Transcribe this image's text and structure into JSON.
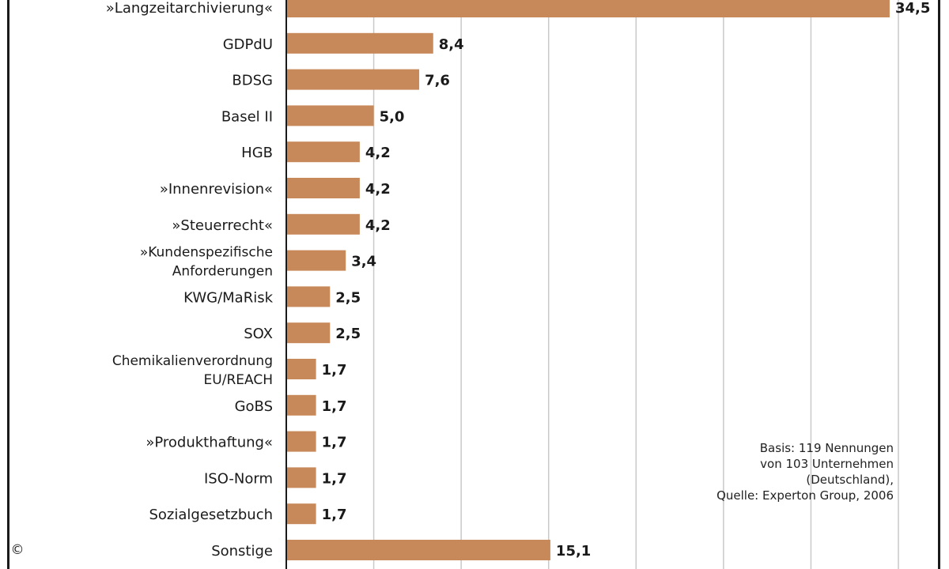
{
  "chart_data": {
    "type": "bar",
    "orientation": "horizontal",
    "categories": [
      "»Langzeitarchivierung«",
      "GDPdU",
      "BDSG",
      "Basel II",
      "HGB",
      "»Innenrevision«",
      "»Steuerrecht«",
      "»Kundenspezifische Anforderungen",
      "KWG/MaRisk",
      "SOX",
      "Chemikalienverordnung EU/REACH",
      "GoBS",
      "»Produkthaftung«",
      "ISO-Norm",
      "Sozialgesetzbuch",
      "Sonstige"
    ],
    "values": [
      34.5,
      8.4,
      7.6,
      5.0,
      4.2,
      4.2,
      4.2,
      3.4,
      2.5,
      2.5,
      1.7,
      1.7,
      1.7,
      1.7,
      1.7,
      15.1
    ],
    "value_labels": [
      "34,5",
      "8,4",
      "7,6",
      "5,0",
      "4,2",
      "4,2",
      "4,2",
      "3,4",
      "2,5",
      "2,5",
      "1,7",
      "1,7",
      "1,7",
      "1,7",
      "1,7",
      "15,1"
    ],
    "xlim": [
      0,
      35
    ],
    "grid": true,
    "bar_color": "#c8895a"
  },
  "note": {
    "lines": [
      "Basis: 119 Nennungen",
      "von 103 Unternehmen",
      "(Deutschland),",
      "Quelle: Experton Group, 2006"
    ]
  },
  "copyright_symbol": "©"
}
